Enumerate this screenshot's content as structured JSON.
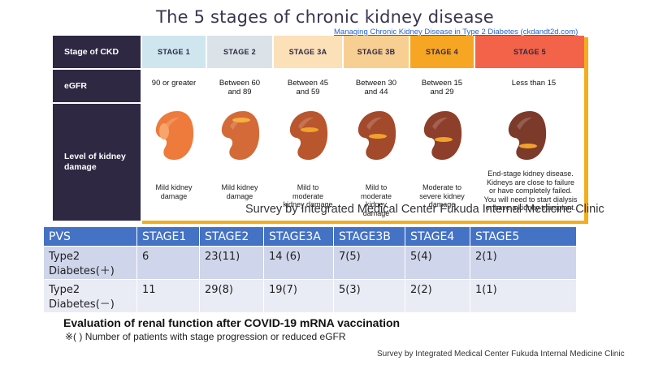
{
  "title": "The 5 stages of chronic kidney disease",
  "reference_link": "Managing Chronic Kidney Disease in Type 2 Diabetes (ckdandt2d.com)",
  "ckd": {
    "row_labels": [
      "Stage of CKD",
      "eGFR",
      "Level of kidney damage"
    ],
    "stages": [
      {
        "name": "STAGE 1",
        "color": "#cfe6ef",
        "egfr": "90 or greater",
        "damage": "Mild kidney damage",
        "kidney_color": "#ee7a3b",
        "spot_color": "#f7a56a"
      },
      {
        "name": "STAGE 2",
        "color": "#dbe3e9",
        "egfr": "Between 60 and 89",
        "damage": "Mild kidney damage",
        "kidney_color": "#d46a37",
        "spot_color": "#f5b140"
      },
      {
        "name": "STAGE 3A",
        "color": "#fbe0b8",
        "egfr": "Between 45 and 59",
        "damage": "Mild to moderate kidney damage",
        "kidney_color": "#b9562e",
        "spot_color": "#f0a22c"
      },
      {
        "name": "STAGE 3B",
        "color": "#f7cf93",
        "egfr": "Between 30 and 44",
        "damage": "Mild to moderate kidney damage",
        "kidney_color": "#a34a2c",
        "spot_color": "#f0a22c"
      },
      {
        "name": "STAGE 4",
        "color": "#f7a623",
        "egfr": "Between 15 and 29",
        "damage": "Moderate to severe kidney damage",
        "kidney_color": "#8e3f2b",
        "spot_color": "#f0a22c"
      },
      {
        "name": "STAGE 5",
        "color": "#f2634a",
        "egfr": "Less than 15",
        "damage": "End-stage kidney disease. Kidneys are close to failure or have completely failed. You will need to start dialysis or have a kidney transplant.",
        "kidney_color": "#7c3a2b",
        "spot_color": "#f0a22c"
      }
    ]
  },
  "overlay_survey": "Survey by  Integrated Medical Center Fukuda Internal Medicine Clinic",
  "table": {
    "headers": [
      "PVS",
      "STAGE1",
      "STAGE2",
      "STAGE3A",
      "STAGE3B",
      "STAGE4",
      "STAGE5"
    ],
    "rows": [
      {
        "label": "Type2 Diabetes(＋)",
        "cells": [
          "6",
          "23(11)",
          "14 (6)",
          "7(5)",
          "5(4)",
          "2(1)"
        ]
      },
      {
        "label": "Type2 Diabetes(－)",
        "cells": [
          "11",
          "29(8)",
          "19(7)",
          "5(3)",
          "2(2)",
          "1(1)"
        ]
      }
    ]
  },
  "caption": "Evaluation of renal function after COVID-19 mRNA vaccination",
  "note": "※( ) Number of patients with stage progression or reduced eGFR",
  "credit": "Survey by  Integrated Medical Center Fukuda Internal Medicine Clinic"
}
